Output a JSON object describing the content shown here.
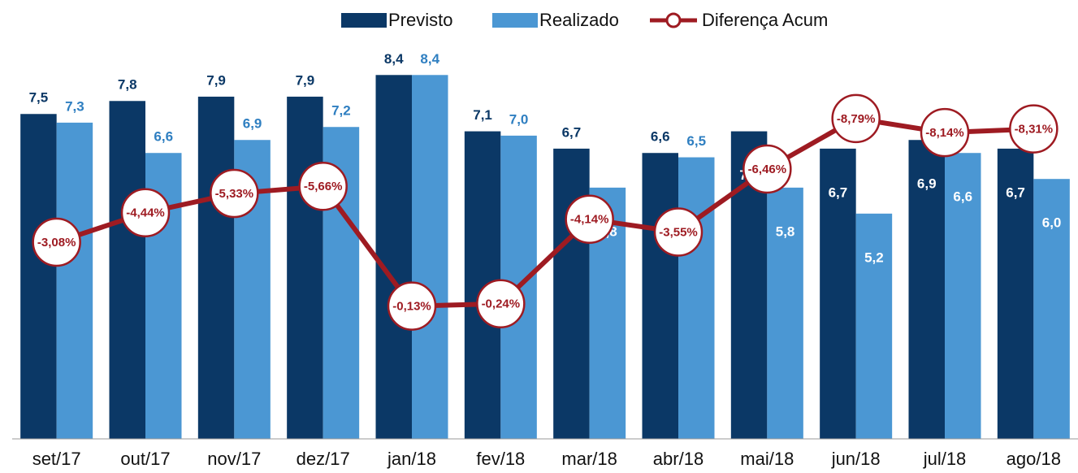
{
  "chart_data": {
    "type": "bar",
    "categories": [
      "set/17",
      "out/17",
      "nov/17",
      "dez/17",
      "jan/18",
      "fev/18",
      "mar/18",
      "abr/18",
      "mai/18",
      "jun/18",
      "jul/18",
      "ago/18"
    ],
    "series": [
      {
        "name": "Previsto",
        "color": "#0b3866",
        "values": [
          7.5,
          7.8,
          7.9,
          7.9,
          8.4,
          7.1,
          6.7,
          6.6,
          7.1,
          6.7,
          6.9,
          6.7
        ],
        "value_labels": [
          "7,5",
          "7,8",
          "7,9",
          "7,9",
          "8,4",
          "7,1",
          "6,7",
          "6,6",
          "7,1",
          "6,7",
          "6,9",
          "6,7"
        ]
      },
      {
        "name": "Realizado",
        "color": "#4b97d3",
        "values": [
          7.3,
          6.6,
          6.9,
          7.2,
          8.4,
          7.0,
          5.8,
          6.5,
          5.8,
          5.2,
          6.6,
          6.0
        ],
        "value_labels": [
          "7,3",
          "6,6",
          "6,9",
          "7,2",
          "8,4",
          "7,0",
          "5,8",
          "6,5",
          "5,8",
          "5,2",
          "6,6",
          "6,0"
        ]
      },
      {
        "name": "Diferença Acum",
        "type": "line",
        "axis": "y2",
        "color": "#9e1b22",
        "values": [
          -3.08,
          -4.44,
          -5.33,
          -5.66,
          -0.13,
          -0.24,
          -4.14,
          -3.55,
          -6.46,
          -8.79,
          -8.14,
          -8.31
        ],
        "value_labels": [
          "-3,08%",
          "-4,44%",
          "-5,33%",
          "-5,66%",
          "-0,13%",
          "-0,24%",
          "-4,14%",
          "-3,55%",
          "-6,46%",
          "-8,79%",
          "-8,14%",
          "-8,31%"
        ]
      }
    ],
    "ylim": [
      0,
      10
    ],
    "y2lim": [
      6,
      -14
    ]
  }
}
